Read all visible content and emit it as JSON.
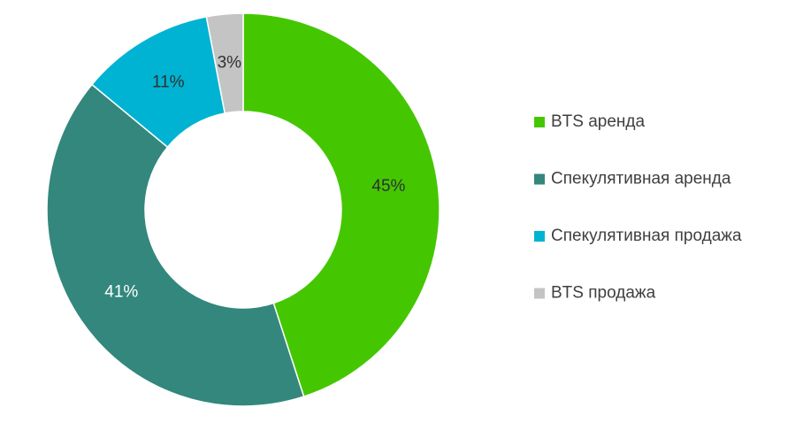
{
  "chart_data": {
    "type": "donut",
    "categories": [
      "BTS аренда",
      "Спекулятивная аренда",
      "Спекулятивная продажа",
      "BTS продажа"
    ],
    "values": [
      45,
      41,
      11,
      3
    ],
    "value_labels": [
      "45%",
      "41%",
      "11%",
      "3%"
    ],
    "colors": [
      "#44c700",
      "#33877c",
      "#00b3d3",
      "#c4c4c4"
    ],
    "label_colors": [
      "#303030",
      "#ffffff",
      "#303030",
      "#303030"
    ],
    "legend": "right"
  }
}
